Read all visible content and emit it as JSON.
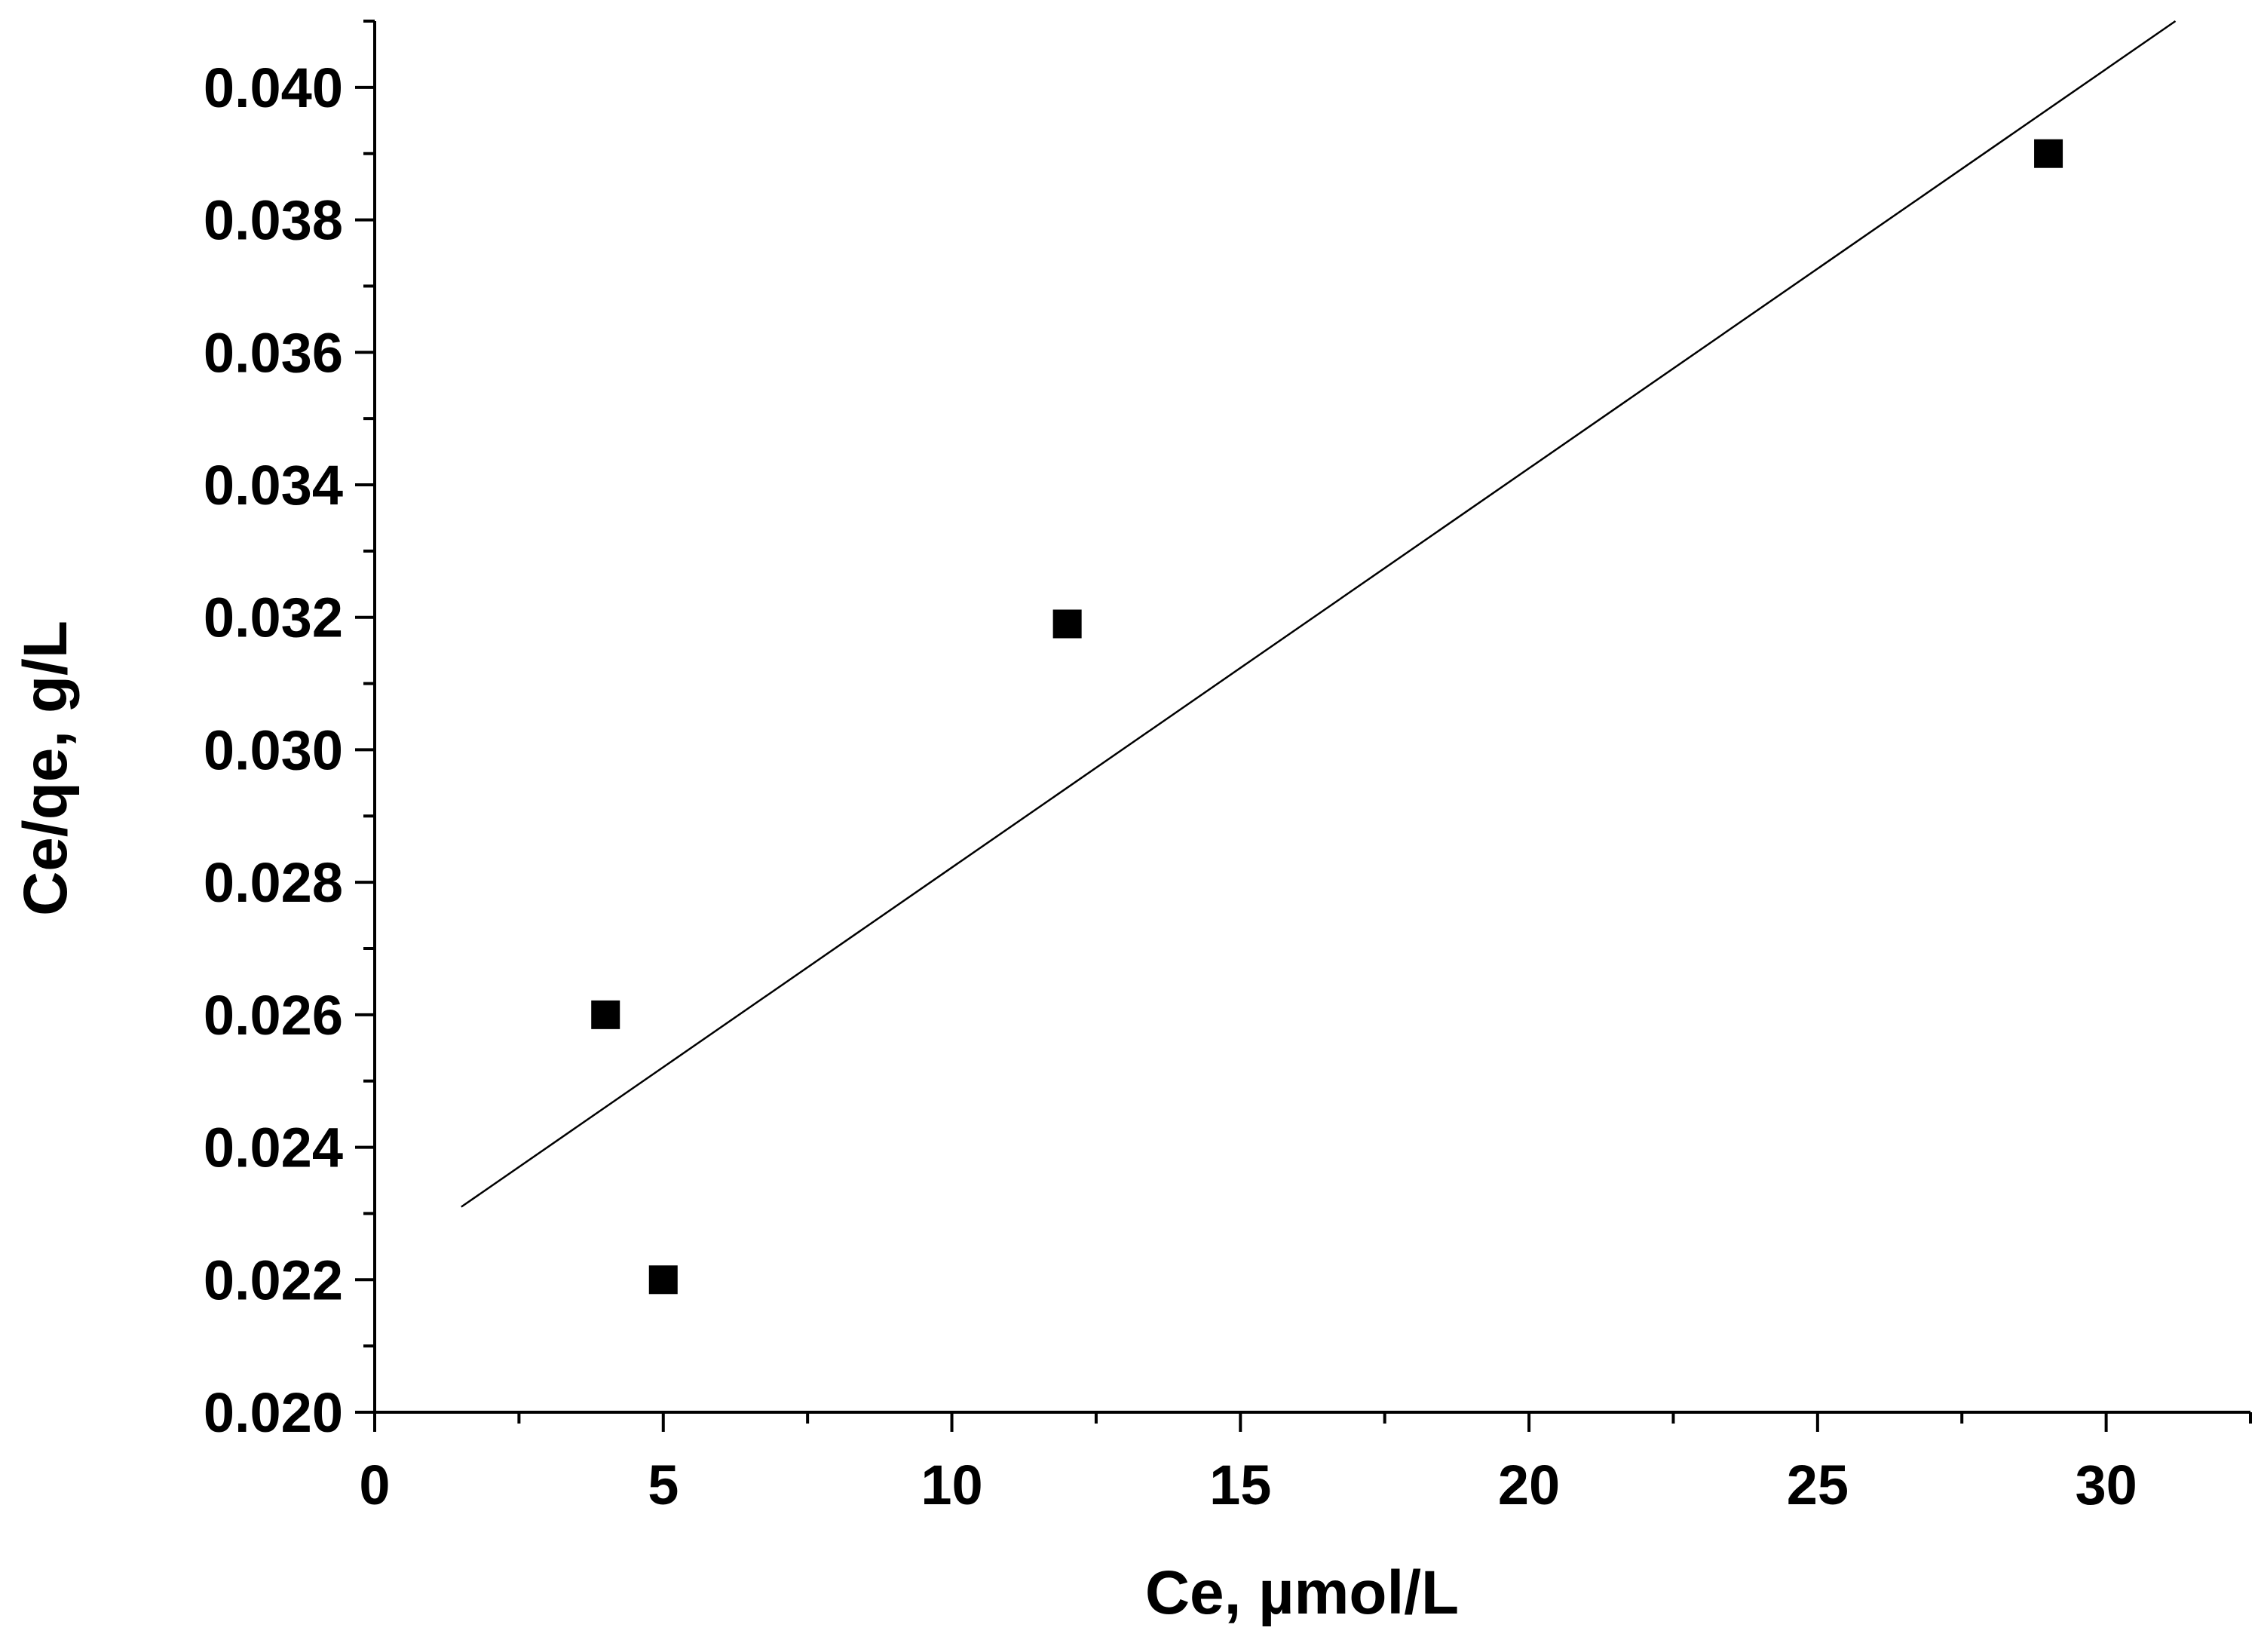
{
  "chart_data": {
    "type": "scatter",
    "title": "",
    "xlabel": "Ce, µmol/L",
    "ylabel": "Ce/qe, g/L",
    "xlim": [
      0,
      32.5
    ],
    "ylim": [
      0.02,
      0.041
    ],
    "x_ticks": [
      0,
      5,
      10,
      15,
      20,
      25,
      30
    ],
    "x_tick_labels": [
      "0",
      "5",
      "10",
      "15",
      "20",
      "25",
      "30"
    ],
    "x_minor_step": 2.5,
    "y_ticks": [
      0.02,
      0.022,
      0.024,
      0.026,
      0.028,
      0.03,
      0.032,
      0.034,
      0.036,
      0.038,
      0.04
    ],
    "y_tick_labels": [
      "0.020",
      "0.022",
      "0.024",
      "0.026",
      "0.028",
      "0.030",
      "0.032",
      "0.034",
      "0.036",
      "0.038",
      "0.040"
    ],
    "y_minor_step": 0.001,
    "grid": false,
    "legend": "none",
    "marker": "filled-square",
    "series": [
      {
        "x": [
          4,
          5,
          12,
          29
        ],
        "y": [
          0.026,
          0.022,
          0.0319,
          0.039
        ]
      }
    ],
    "fit_line": {
      "x": [
        1.5,
        31.2
      ],
      "y": [
        0.0231,
        0.041
      ]
    },
    "colors": {
      "marker": "#000000",
      "line": "#000000",
      "axis": "#000000",
      "background": "#ffffff"
    }
  }
}
